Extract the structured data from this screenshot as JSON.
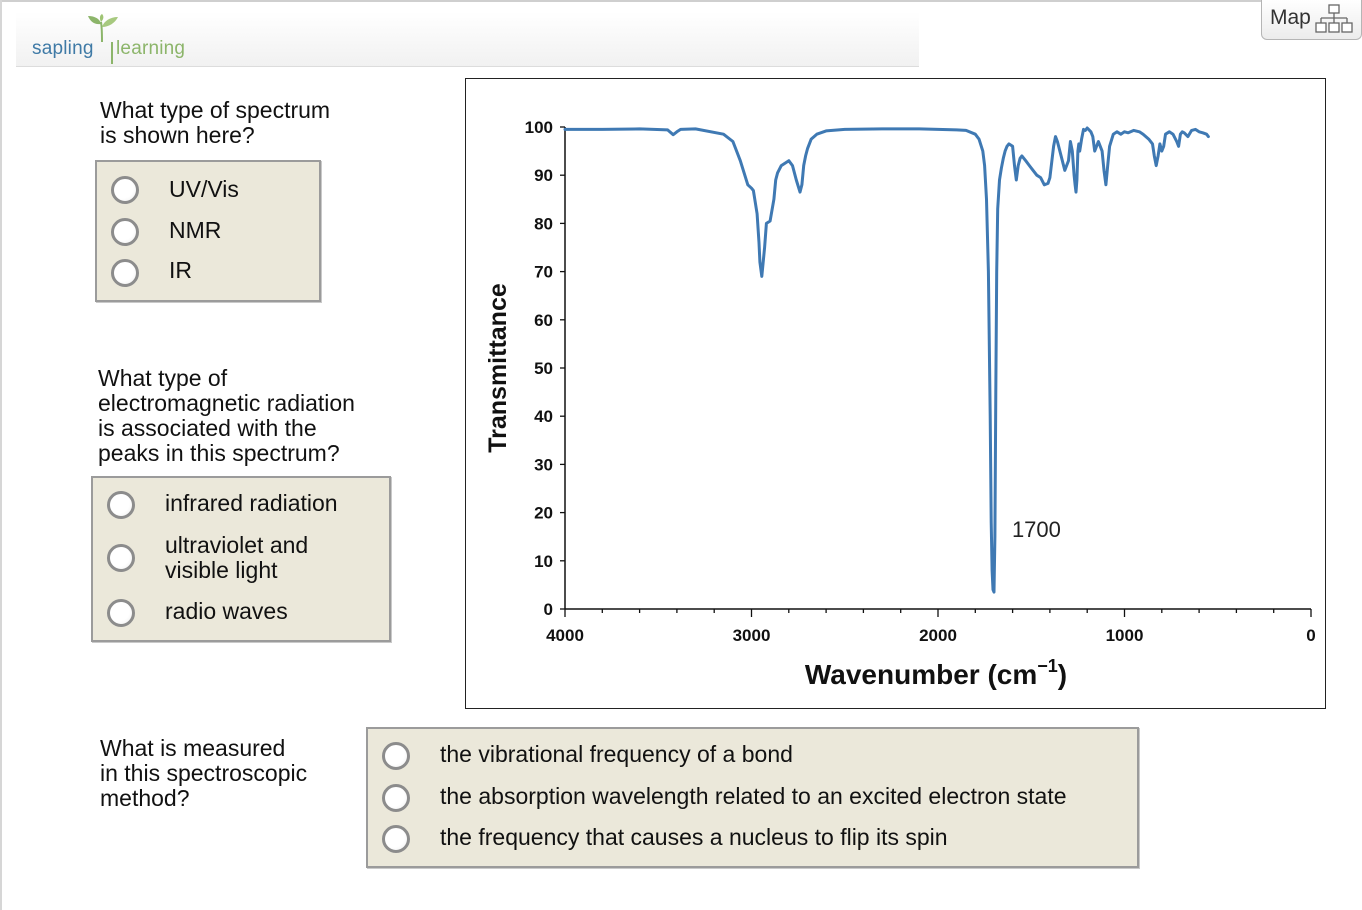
{
  "header": {
    "logo_part1": "sapling",
    "logo_part2": "learning"
  },
  "map_button": {
    "label": "Map",
    "icon": "sitemap-icon"
  },
  "questions": [
    {
      "prompt_lines": [
        "What type of spectrum",
        "is shown here?"
      ],
      "options": [
        {
          "lines": [
            "UV/Vis"
          ]
        },
        {
          "lines": [
            "NMR"
          ]
        },
        {
          "lines": [
            "IR"
          ]
        }
      ]
    },
    {
      "prompt_lines": [
        "What type of",
        "electromagnetic radiation",
        "is associated with the",
        "peaks in this spectrum?"
      ],
      "options": [
        {
          "lines": [
            "infrared radiation"
          ]
        },
        {
          "lines": [
            "ultraviolet and",
            "visible light"
          ]
        },
        {
          "lines": [
            "radio waves"
          ]
        }
      ]
    },
    {
      "prompt_lines": [
        "What is measured",
        "in this spectroscopic",
        "method?"
      ],
      "options": [
        {
          "lines": [
            "the vibrational frequency of a bond"
          ]
        },
        {
          "lines": [
            "the absorption wavelength related to an excited electron state"
          ]
        },
        {
          "lines": [
            "the frequency that causes a nucleus to flip its spin"
          ]
        }
      ]
    }
  ],
  "colors": {
    "option_bg": "#ebe8da",
    "option_border": "#9b9b9b",
    "line": "#3f79b3",
    "logo_blue": "#3f7aa6",
    "logo_green": "#8cb56a"
  },
  "chart_data": {
    "type": "line",
    "xlabel": "Wavenumber (cm",
    "xlabel_sup": "−1",
    "xlabel_end": ")",
    "ylabel": "Transmittance",
    "xlim": [
      4000,
      0
    ],
    "ylim": [
      0,
      100
    ],
    "x_ticks": [
      4000,
      3000,
      2000,
      1000,
      0
    ],
    "y_ticks": [
      0,
      10,
      20,
      30,
      40,
      50,
      60,
      70,
      80,
      90,
      100
    ],
    "annotation": {
      "text": "1700",
      "x": 1700,
      "y": 3.5
    },
    "series": [
      {
        "x": [
          4000,
          3800,
          3600,
          3450,
          3420,
          3400,
          3380,
          3300,
          3150,
          3100,
          3060,
          3020,
          3000,
          2990,
          2970,
          2960,
          2955,
          2945,
          2930,
          2920,
          2900,
          2880,
          2870,
          2860,
          2840,
          2800,
          2780,
          2760,
          2740,
          2730,
          2720,
          2710,
          2700,
          2680,
          2650,
          2600,
          2500,
          2300,
          2100,
          2000,
          1900,
          1850,
          1800,
          1780,
          1760,
          1750,
          1740,
          1730,
          1720,
          1715,
          1710,
          1705,
          1700,
          1695,
          1690,
          1685,
          1680,
          1670,
          1660,
          1650,
          1640,
          1630,
          1620,
          1600,
          1590,
          1580,
          1570,
          1560,
          1550,
          1540,
          1530,
          1510,
          1490,
          1470,
          1450,
          1430,
          1410,
          1400,
          1380,
          1370,
          1360,
          1340,
          1320,
          1300,
          1290,
          1280,
          1270,
          1265,
          1260,
          1255,
          1250,
          1245,
          1240,
          1230,
          1220,
          1210,
          1200,
          1180,
          1170,
          1160,
          1140,
          1120,
          1110,
          1100,
          1090,
          1080,
          1060,
          1040,
          1020,
          1000,
          980,
          950,
          920,
          900,
          870,
          850,
          840,
          830,
          820,
          810,
          800,
          790,
          780,
          760,
          740,
          720,
          710,
          700,
          690,
          680,
          660,
          640,
          620,
          600,
          580,
          560,
          550
        ],
        "y": [
          99.5,
          99.5,
          99.6,
          99.4,
          98.4,
          99.0,
          99.5,
          99.6,
          98.5,
          97.0,
          93.0,
          88.0,
          87.3,
          86.8,
          82.0,
          76.0,
          72.0,
          69.0,
          75.0,
          80.0,
          80.5,
          85.0,
          89.0,
          90.5,
          92.0,
          93.0,
          92.0,
          89.0,
          86.5,
          88.0,
          92.0,
          94.0,
          95.5,
          97.5,
          98.5,
          99.2,
          99.5,
          99.6,
          99.6,
          99.5,
          99.4,
          99.3,
          98.5,
          97.5,
          95.0,
          92.0,
          85.0,
          70.0,
          40.0,
          18.0,
          8.0,
          4.0,
          3.5,
          15.0,
          45.0,
          70.0,
          83.0,
          89.0,
          91.5,
          93.5,
          95.0,
          96.0,
          96.5,
          96.0,
          92.0,
          89.0,
          92.0,
          93.5,
          94.0,
          93.5,
          93.0,
          92.0,
          91.0,
          90.0,
          89.5,
          88.0,
          88.3,
          89.5,
          96.0,
          98.0,
          97.0,
          94.0,
          91.0,
          93.0,
          97.0,
          95.0,
          90.0,
          88.0,
          86.5,
          89.0,
          95.0,
          96.5,
          95.0,
          97.5,
          99.5,
          99.3,
          99.8,
          99.0,
          98.0,
          95.0,
          97.0,
          95.0,
          91.0,
          88.0,
          92.0,
          96.0,
          98.5,
          99.0,
          98.5,
          99.0,
          98.8,
          99.3,
          99.0,
          98.5,
          97.5,
          96.5,
          94.0,
          92.0,
          94.0,
          96.5,
          95.0,
          96.0,
          98.5,
          99.0,
          98.5,
          97.0,
          96.0,
          98.5,
          99.0,
          98.8,
          98.0,
          99.3,
          99.5,
          99.0,
          98.8,
          98.5,
          98.0
        ]
      }
    ]
  }
}
